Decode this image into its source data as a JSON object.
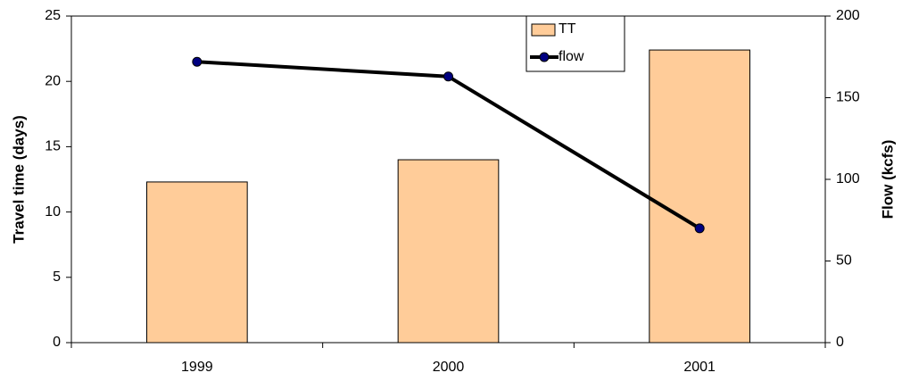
{
  "chart_data": {
    "type": "combo",
    "categories": [
      "1999",
      "2000",
      "2001"
    ],
    "series": [
      {
        "name": "TT",
        "type": "bar",
        "color": "#ffcc99",
        "values": [
          12.3,
          14.0,
          22.4
        ]
      },
      {
        "name": "flow",
        "type": "line",
        "axis": "y2",
        "color": "#000000",
        "marker_color": "#000080",
        "values": [
          172,
          163,
          70
        ]
      }
    ],
    "ylabel": "Travel time (days)",
    "y2label": "Flow (kcfs)",
    "ylim": [
      0,
      25
    ],
    "yticks": [
      0,
      5,
      10,
      15,
      20,
      25
    ],
    "y2lim": [
      0,
      200
    ],
    "y2ticks": [
      0,
      50,
      100,
      150,
      200
    ],
    "grid": false,
    "legend": "top"
  }
}
